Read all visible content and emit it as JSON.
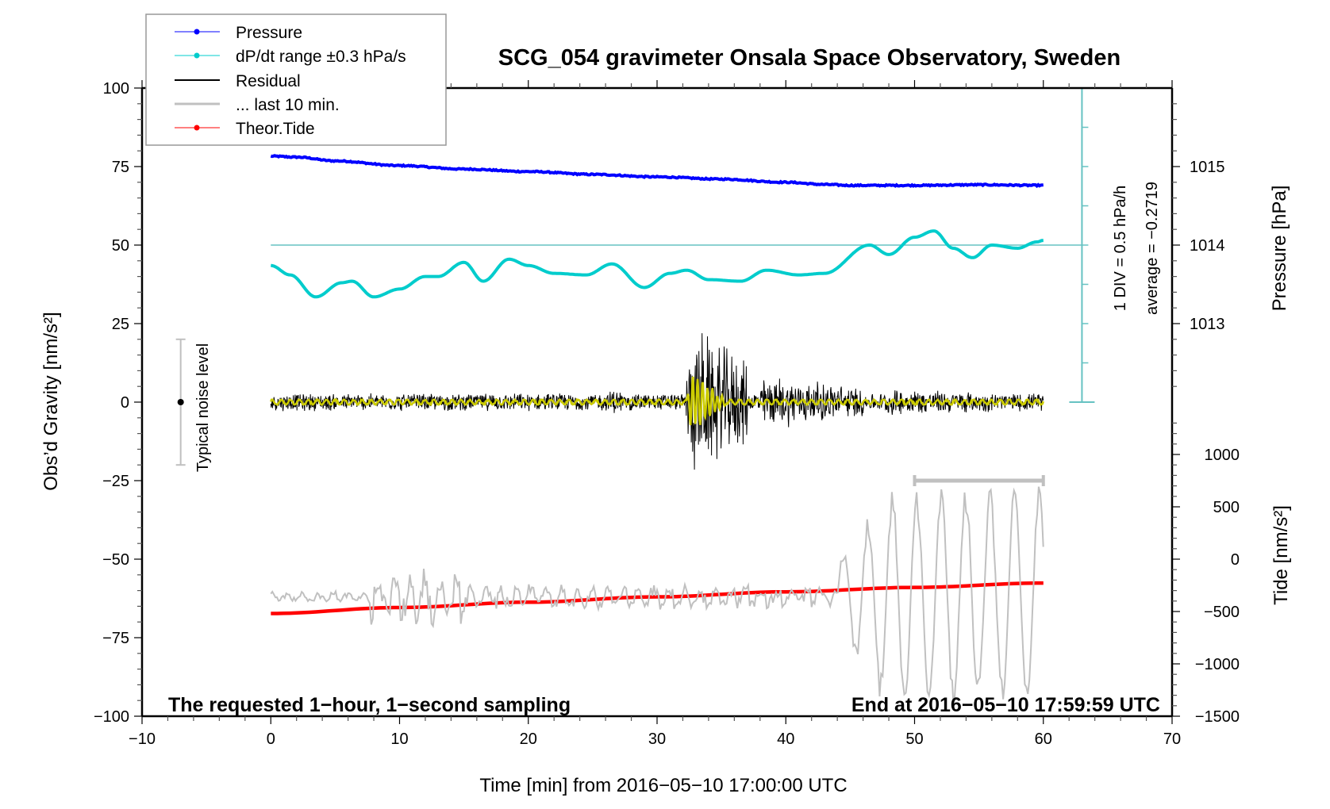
{
  "chart_data": {
    "type": "line",
    "title": "SCG_054 gravimeter Onsala Space Observatory, Sweden",
    "xlabel": "Time [min] from 2016−05−10 17:00:00 UTC",
    "ylabel": "Obs’d Gravity [nm/s²]",
    "ylabel_right_top": "Pressure [hPa]",
    "ylabel_right_bottom": "Tide [nm/s²]",
    "xlim": [
      -10,
      70
    ],
    "ylim": [
      -100,
      100
    ],
    "grid": false,
    "legend_position": "top-left",
    "x_ticks": [
      -10,
      0,
      10,
      20,
      30,
      40,
      50,
      60,
      70
    ],
    "x_tick_labels": [
      "−10",
      "0",
      "10",
      "20",
      "30",
      "40",
      "50",
      "60",
      "70"
    ],
    "y_ticks": [
      100,
      75,
      50,
      25,
      0,
      -25,
      -50,
      -75,
      -100
    ],
    "y_tick_labels": [
      "100",
      "75",
      "50",
      "25",
      "0",
      "−25",
      "−50",
      "−75",
      "−100"
    ],
    "pressure_axis": {
      "ticks_hPa": [
        1015,
        1014,
        1013
      ],
      "tick_labels": [
        "1015",
        "1014",
        "1013"
      ],
      "map": {
        "hPa_ref": 1014,
        "gravity_ref": 50,
        "units_per_hPa": 25
      }
    },
    "tide_axis": {
      "ticks": [
        1000,
        500,
        0,
        -500,
        -1000,
        -1500
      ],
      "tick_labels": [
        "1000",
        "500",
        "0",
        "−500",
        "−1000",
        "−1500"
      ],
      "map": {
        "tide_ref": 0,
        "gravity_ref": -50,
        "units_per_500": 16.667
      }
    },
    "legend": [
      {
        "name": "Pressure",
        "color": "#0000ff",
        "style": "line-dot"
      },
      {
        "name": "dP/dt range ±0.3 hPa/s",
        "color": "#00cccc",
        "style": "line-dot"
      },
      {
        "name": "Residual",
        "color": "#000000",
        "style": "line"
      },
      {
        "name": "... last 10 min.",
        "color": "#c0c0c0",
        "style": "thick-line"
      },
      {
        "name": "Theor.Tide",
        "color": "#ff0000",
        "style": "line-dot"
      }
    ],
    "series": [
      {
        "name": "Pressure",
        "color": "#0000ff",
        "unit": "gravity-axis units",
        "x": [
          0,
          2,
          5,
          10,
          15,
          20,
          25,
          30,
          35,
          40,
          43,
          45,
          50,
          55,
          60
        ],
        "y": [
          78.3,
          78.0,
          76.8,
          75.3,
          74.2,
          73.4,
          72.5,
          71.7,
          71.0,
          70.0,
          69.3,
          69.0,
          69.0,
          69.2,
          69.0
        ]
      },
      {
        "name": "dP/dt range ±0.3 hPa/s",
        "color": "#00cccc",
        "unit": "gravity-axis units",
        "x": [
          0,
          1.5,
          3.5,
          5.5,
          6.3,
          8,
          10,
          12,
          13,
          15,
          16.5,
          18.5,
          20,
          22,
          24.5,
          26.5,
          29,
          31,
          32.3,
          34,
          36.5,
          38.5,
          41,
          43,
          46.5,
          48,
          50,
          51.5,
          53,
          54.5,
          56,
          58,
          59.5,
          60
        ],
        "y": [
          43.5,
          40.5,
          33.5,
          38.0,
          38.5,
          33.5,
          36.0,
          40.0,
          40.0,
          44.5,
          38.5,
          45.5,
          43.5,
          41.0,
          40.5,
          44.0,
          36.5,
          41.0,
          42.0,
          39.0,
          38.5,
          42.0,
          40.5,
          41.0,
          50.0,
          47.0,
          52.5,
          54.5,
          49.0,
          46.0,
          50.0,
          49.0,
          51.0,
          51.5
        ]
      },
      {
        "name": "dP/dt reference line",
        "color": "#66c2c2",
        "x": [
          0,
          63
        ],
        "y": [
          50,
          50
        ]
      },
      {
        "name": "Residual",
        "color": "#000000",
        "unit": "gravity-axis units",
        "x_range": [
          0,
          60
        ],
        "baseline": 0,
        "noise_amplitude": 3,
        "bursts": [
          {
            "t_start": 26.2,
            "t_end": 27.5,
            "amplitude": 6
          },
          {
            "t_start": 32.0,
            "t_end": 37.0,
            "amplitude": 28
          },
          {
            "t_start": 37.0,
            "t_end": 46.0,
            "amplitude": 10
          },
          {
            "t_start": 46.0,
            "t_end": 60.0,
            "amplitude": 5
          }
        ],
        "extremes": {
          "max": 31,
          "min": -32,
          "max_at_min": 34
        }
      },
      {
        "name": "Residual (filtered)",
        "color": "#cccc00",
        "unit": "gravity-axis units",
        "x_range": [
          0,
          60
        ],
        "baseline": 0,
        "noise_amplitude": 0.8,
        "bursts": [
          {
            "t_start": 32.3,
            "t_end": 35.5,
            "amplitude": 10
          }
        ]
      },
      {
        "name": "... last 10 min.",
        "color": "#c0c0c0",
        "unit": "gravity-axis units",
        "x_range": [
          0,
          60
        ],
        "baseline": -62,
        "segments": [
          {
            "t_start": 0,
            "t_end": 7.5,
            "amplitude": 1.5
          },
          {
            "t_start": 7.5,
            "t_end": 15,
            "amplitude": 8
          },
          {
            "t_start": 15,
            "t_end": 44,
            "amplitude": 3.5
          },
          {
            "t_start": 44,
            "t_end": 60,
            "amplitude": 33
          }
        ]
      },
      {
        "name": "Theor.Tide",
        "color": "#ff0000",
        "unit": "gravity-axis units",
        "x": [
          0,
          10,
          20,
          30,
          40,
          50,
          60
        ],
        "y": [
          -67.3,
          -65.4,
          -63.7,
          -62.0,
          -60.4,
          -59.0,
          -57.6
        ]
      }
    ],
    "annotations": [
      {
        "text": "The requested 1−hour, 1−second sampling",
        "position": "bottom-left"
      },
      {
        "text": "End at 2016−05−10 17:59:59 UTC",
        "position": "bottom-right"
      },
      {
        "text": "Typical noise level",
        "x": -7,
        "range": [
          -20,
          20
        ],
        "center": 0
      },
      {
        "text": "1 DIV = 0.5 hPa/h",
        "position": "right"
      },
      {
        "text": "average = −0.2719",
        "position": "right"
      },
      {
        "text": "last 10 min. bar",
        "x_range": [
          50,
          60
        ],
        "y": -25
      }
    ],
    "dpdt_scale": {
      "x": 63,
      "y_range": [
        0,
        100
      ],
      "divisions": 8
    }
  }
}
